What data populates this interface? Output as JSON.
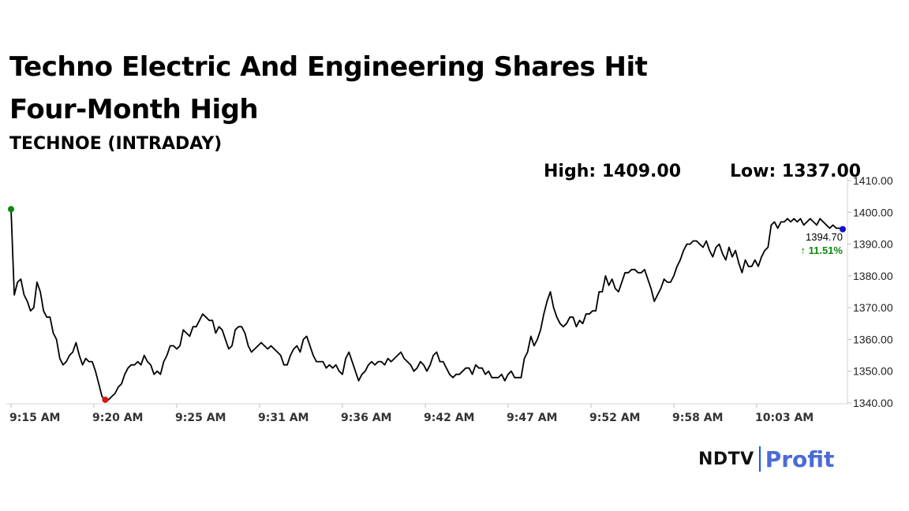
{
  "headline": "Techno Electric And Engineering Shares Hit Four-Month High",
  "subheading": "TECHNOE (INTRADAY)",
  "stats": {
    "high": "High: 1409.00",
    "low": "Low: 1337.00"
  },
  "brand": {
    "name": "NDTV",
    "suffix": "Profit",
    "colors": {
      "ndtv": "#111111",
      "profit": "#4b6bd6",
      "separator": "#1a56db"
    }
  },
  "chart_data": {
    "type": "line",
    "title": "",
    "xlabel": "",
    "ylabel": "",
    "ylim": [
      1340,
      1410
    ],
    "yticks": [
      "1340.00",
      "1350.00",
      "1360.00",
      "1370.00",
      "1380.00",
      "1390.00",
      "1400.00",
      "1410.00"
    ],
    "xticks": [
      "9:15 AM",
      "9:20 AM",
      "9:25 AM",
      "9:31 AM",
      "9:36 AM",
      "9:42 AM",
      "9:47 AM",
      "9:52 AM",
      "9:58 AM",
      "10:03 AM"
    ],
    "grid": false,
    "line_color": "#000000",
    "series": [
      {
        "values": [
          1401,
          1374,
          1378,
          1379,
          1374,
          1372,
          1369,
          1370,
          1378,
          1375,
          1369,
          1367,
          1367,
          1362,
          1360,
          1354,
          1352,
          1353,
          1355,
          1356,
          1359,
          1355,
          1352,
          1354,
          1353,
          1353,
          1350,
          1346,
          1342,
          1341,
          1341,
          1342,
          1343,
          1345,
          1346,
          1349,
          1351,
          1352,
          1352,
          1353,
          1352,
          1355,
          1353,
          1352,
          1349,
          1350,
          1349,
          1353,
          1355,
          1358,
          1358,
          1357,
          1358,
          1363,
          1362,
          1361,
          1364,
          1364,
          1366,
          1368,
          1367,
          1366,
          1366,
          1362,
          1364,
          1363,
          1360,
          1357,
          1358,
          1363,
          1364,
          1364,
          1362,
          1358,
          1356,
          1357,
          1358,
          1359,
          1358,
          1357,
          1358,
          1357,
          1356,
          1355,
          1352,
          1352,
          1355,
          1357,
          1358,
          1356,
          1360,
          1361,
          1358,
          1355,
          1353,
          1353,
          1353,
          1351,
          1352,
          1351,
          1352,
          1350,
          1349,
          1354,
          1356,
          1353,
          1350,
          1347,
          1349,
          1350,
          1352,
          1353,
          1352,
          1353,
          1353,
          1352,
          1354,
          1353,
          1354,
          1355,
          1356,
          1354,
          1353,
          1352,
          1350,
          1351,
          1353,
          1352,
          1350,
          1352,
          1355,
          1356,
          1353,
          1353,
          1351,
          1349,
          1348,
          1349,
          1349,
          1350,
          1351,
          1351,
          1349,
          1352,
          1351,
          1351,
          1349,
          1350,
          1348,
          1348,
          1348,
          1349,
          1347,
          1349,
          1350,
          1348,
          1348,
          1348,
          1354,
          1356,
          1361,
          1358,
          1360,
          1363,
          1368,
          1372,
          1375,
          1370,
          1367,
          1365,
          1364,
          1365,
          1367,
          1367,
          1364,
          1366,
          1365,
          1368,
          1368,
          1369,
          1369,
          1375,
          1375,
          1380,
          1377,
          1379,
          1376,
          1375,
          1378,
          1381,
          1381,
          1382,
          1382,
          1381,
          1381,
          1382,
          1379,
          1376,
          1372,
          1374,
          1376,
          1379,
          1378,
          1378,
          1380,
          1383,
          1385,
          1388,
          1390,
          1390,
          1391,
          1391,
          1390,
          1389,
          1391,
          1388,
          1386,
          1389,
          1390,
          1387,
          1385,
          1389,
          1386,
          1388,
          1384,
          1381,
          1385,
          1383,
          1383,
          1385,
          1383,
          1386,
          1388,
          1389,
          1396,
          1397,
          1395,
          1397,
          1397,
          1398,
          1397,
          1398,
          1397,
          1398,
          1396,
          1397,
          1398,
          1397,
          1396,
          1398,
          1397,
          1396,
          1395,
          1396,
          1395,
          1395,
          1394.7
        ]
      }
    ],
    "markers": {
      "open_color": "#0a8a0a",
      "low_color": "#e01010",
      "last_color": "#1010cc"
    },
    "last_price": "1394.70",
    "change": "↑ 11.51%",
    "change_color": "#0a8a0a"
  }
}
